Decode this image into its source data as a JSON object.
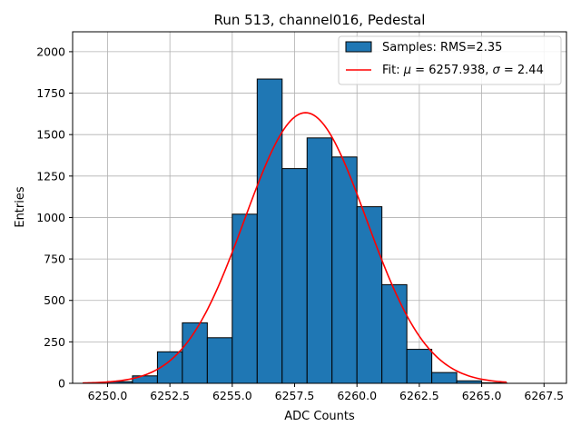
{
  "chart_data": {
    "type": "bar",
    "title": "Run 513, channel016, Pedestal",
    "xlabel": "ADC Counts",
    "ylabel": "Entries",
    "xlim": [
      6248.6,
      6268.4
    ],
    "ylim": [
      0,
      2120
    ],
    "grid": true,
    "legend_position": "top-right",
    "xticks": [
      6250.0,
      6252.5,
      6255.0,
      6257.5,
      6260.0,
      6262.5,
      6265.0,
      6267.5
    ],
    "xtick_labels": [
      "6250.0",
      "6252.5",
      "6255.0",
      "6257.5",
      "6260.0",
      "6262.5",
      "6265.0",
      "6267.5"
    ],
    "yticks": [
      0,
      250,
      500,
      750,
      1000,
      1250,
      1500,
      1750,
      2000
    ],
    "ytick_labels": [
      "0",
      "250",
      "500",
      "750",
      "1000",
      "1250",
      "1500",
      "1750",
      "2000"
    ],
    "bin_edges": [
      6250,
      6251,
      6252,
      6253,
      6254,
      6255,
      6256,
      6257,
      6258,
      6259,
      6260,
      6261,
      6262,
      6263,
      6264,
      6265,
      6266
    ],
    "values": [
      10,
      45,
      190,
      365,
      275,
      1020,
      1835,
      1295,
      1480,
      1365,
      1065,
      595,
      205,
      65,
      15,
      3
    ],
    "bar_color": "#1f77b4",
    "fit": {
      "mu": 6257.938,
      "sigma": 2.44,
      "amplitude": 1632,
      "x_range": [
        6249,
        6266
      ],
      "color": "#ff0000"
    },
    "legend": {
      "samples_label": "Samples: RMS=2.35",
      "fit_label_prefix": "Fit: ",
      "mu_symbol": "μ",
      "fit_label_mid": " = 6257.938, ",
      "sigma_symbol": "σ",
      "fit_label_end": " = 2.44"
    }
  }
}
